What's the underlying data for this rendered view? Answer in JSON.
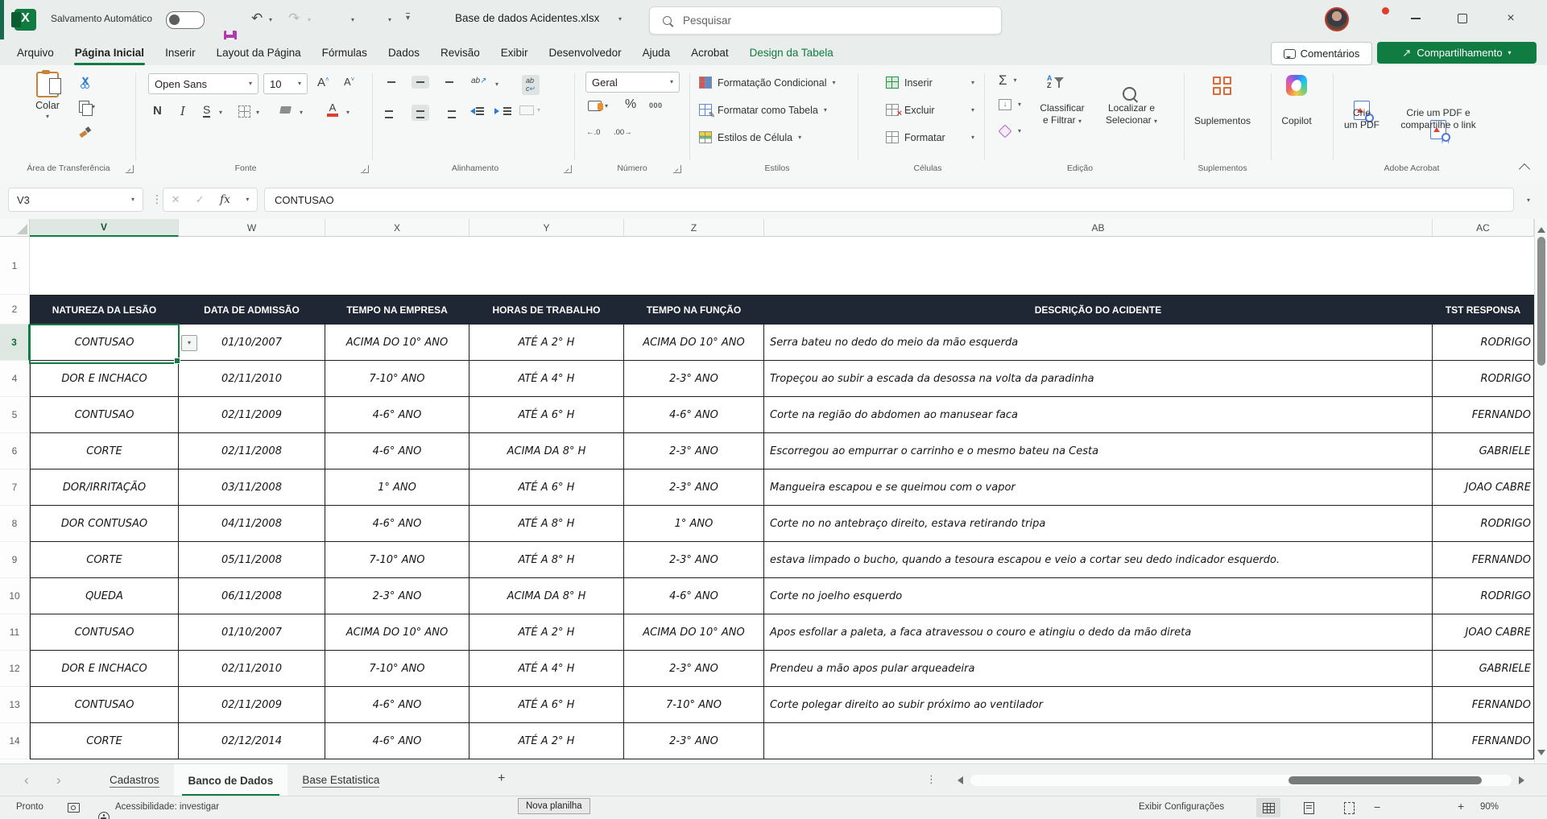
{
  "titlebar": {
    "app": "X",
    "autosave": "Salvamento Automático",
    "filename": "Base de dados Acidentes.xlsx",
    "search_placeholder": "Pesquisar"
  },
  "menubar": {
    "tabs": [
      "Arquivo",
      "Página Inicial",
      "Inserir",
      "Layout da Página",
      "Fórmulas",
      "Dados",
      "Revisão",
      "Exibir",
      "Desenvolvedor",
      "Ajuda",
      "Acrobat",
      "Design da Tabela"
    ],
    "active": "Página Inicial",
    "contextual": "Design da Tabela",
    "comments": "Comentários",
    "share": "Compartilhamento"
  },
  "ribbon": {
    "clipboard": {
      "paste": "Colar",
      "group": "Área de Transferência"
    },
    "font": {
      "name": "Open Sans",
      "size": "10",
      "bold": "N",
      "italic": "I",
      "underline": "S",
      "group": "Fonte"
    },
    "alignment": {
      "orientation_ab": "ab",
      "wrap_ab": "ab",
      "wrap_c": "c",
      "group": "Alinhamento"
    },
    "number": {
      "format": "Geral",
      "percent": "%",
      "thousands": "000",
      "dec_add": "←.0",
      "dec_del": ".00→",
      "group": "Número"
    },
    "styles": {
      "buttons": [
        "Formatação Condicional",
        "Formatar como Tabela",
        "Estilos de Célula"
      ],
      "group": "Estilos"
    },
    "cells": {
      "buttons": [
        "Inserir",
        "Excluir",
        "Formatar"
      ],
      "group": "Células"
    },
    "editing": {
      "sum": "Σ",
      "sort": [
        "Classificar",
        "e Filtrar"
      ],
      "find": [
        "Localizar e",
        "Selecionar"
      ],
      "group": "Edição"
    },
    "addins": {
      "label": "Suplementos",
      "group": "Suplementos"
    },
    "copilot": {
      "label": "Copilot"
    },
    "acrobat": {
      "pdf1": [
        "Crie",
        "um PDF"
      ],
      "pdf2": [
        "Crie um PDF e",
        "compartilhe o link"
      ],
      "group": "Adobe Acrobat"
    }
  },
  "formula_bar": {
    "cell_ref": "V3",
    "fx_label": "fx",
    "value": "CONTUSAO"
  },
  "sheet": {
    "columns": [
      "V",
      "W",
      "X",
      "Y",
      "Z",
      "AB",
      "AC"
    ],
    "selected_column": "V",
    "row_numbers": [
      1,
      2,
      3,
      4,
      5,
      6,
      7,
      8,
      9,
      10,
      11,
      12,
      13,
      14
    ],
    "selected_row": 3,
    "table": {
      "headers": [
        "NATUREZA DA LESÃO",
        "DATA DE ADMISSÃO",
        "TEMPO NA EMPRESA",
        "HORAS DE TRABALHO",
        "TEMPO NA FUNÇÃO",
        "DESCRIÇÃO DO ACIDENTE",
        "TST RESPONSA"
      ],
      "rows": [
        [
          "CONTUSAO",
          "01/10/2007",
          "ACIMA DO 10° ANO",
          "ATÉ A 2° H",
          "ACIMA DO 10° ANO",
          "Serra bateu no dedo do meio da mão esquerda",
          "RODRIGO"
        ],
        [
          "DOR E INCHACO",
          "02/11/2010",
          "7-10° ANO",
          "ATÉ A 4° H",
          "2-3° ANO",
          "Tropeçou ao subir a escada da desossa na volta da paradinha",
          "RODRIGO"
        ],
        [
          "CONTUSAO",
          "02/11/2009",
          "4-6° ANO",
          "ATÉ A 6° H",
          "4-6° ANO",
          "Corte na região do abdomen ao manusear faca",
          "FERNANDO"
        ],
        [
          "CORTE",
          "02/11/2008",
          "4-6° ANO",
          "ACIMA DA 8° H",
          "2-3° ANO",
          "Escorregou ao empurrar o carrinho e o mesmo bateu na Cesta",
          "GABRIELE"
        ],
        [
          "DOR/IRRITAÇÃO",
          "03/11/2008",
          "1° ANO",
          "ATÉ A 6° H",
          "2-3° ANO",
          "Mangueira escapou e se queimou com o vapor",
          "JOAO CABRE"
        ],
        [
          "DOR CONTUSAO",
          "04/11/2008",
          "4-6° ANO",
          "ATÉ A 8° H",
          "1° ANO",
          "Corte no no antebraço direito, estava retirando tripa",
          "RODRIGO"
        ],
        [
          "CORTE",
          "05/11/2008",
          "7-10° ANO",
          "ATÉ A 8° H",
          "2-3° ANO",
          "estava limpado o bucho, quando a tesoura escapou e veio a cortar seu dedo indicador esquerdo.",
          "FERNANDO"
        ],
        [
          "QUEDA",
          "06/11/2008",
          "2-3° ANO",
          "ACIMA DA 8° H",
          "4-6° ANO",
          "Corte no joelho esquerdo",
          "RODRIGO"
        ],
        [
          "CONTUSAO",
          "01/10/2007",
          "ACIMA DO 10° ANO",
          "ATÉ A 2° H",
          "ACIMA DO 10° ANO",
          "Apos esfollar a paleta, a faca atravessou o couro e atingiu o dedo da mão direta",
          "JOAO CABRE"
        ],
        [
          "DOR E INCHACO",
          "02/11/2010",
          "7-10° ANO",
          "ATÉ A 4° H",
          "2-3° ANO",
          "Prendeu a mão apos pular arqueadeira",
          "GABRIELE"
        ],
        [
          "CONTUSAO",
          "02/11/2009",
          "4-6° ANO",
          "ATÉ A 6° H",
          "7-10° ANO",
          "Corte polegar direito ao subir próximo ao ventilador",
          "FERNANDO"
        ],
        [
          "CORTE",
          "02/12/2014",
          "4-6° ANO",
          "ATÉ A 2° H",
          "2-3° ANO",
          "",
          "FERNANDO"
        ]
      ]
    }
  },
  "sheet_tabs": {
    "tabs": [
      "Cadastros",
      "Banco de Dados",
      "Base Estatistica"
    ],
    "active": "Banco de Dados",
    "add": "+"
  },
  "status_bar": {
    "mode": "Pronto",
    "accessibility": "Acessibilidade: investigar",
    "tooltip": "Nova planilha",
    "display_settings": "Exibir Configurações",
    "zoom": "90%"
  },
  "colors": {
    "accent_green": "#107c41",
    "table_header": "#1e2733",
    "save_icon": "#b23ab0"
  }
}
